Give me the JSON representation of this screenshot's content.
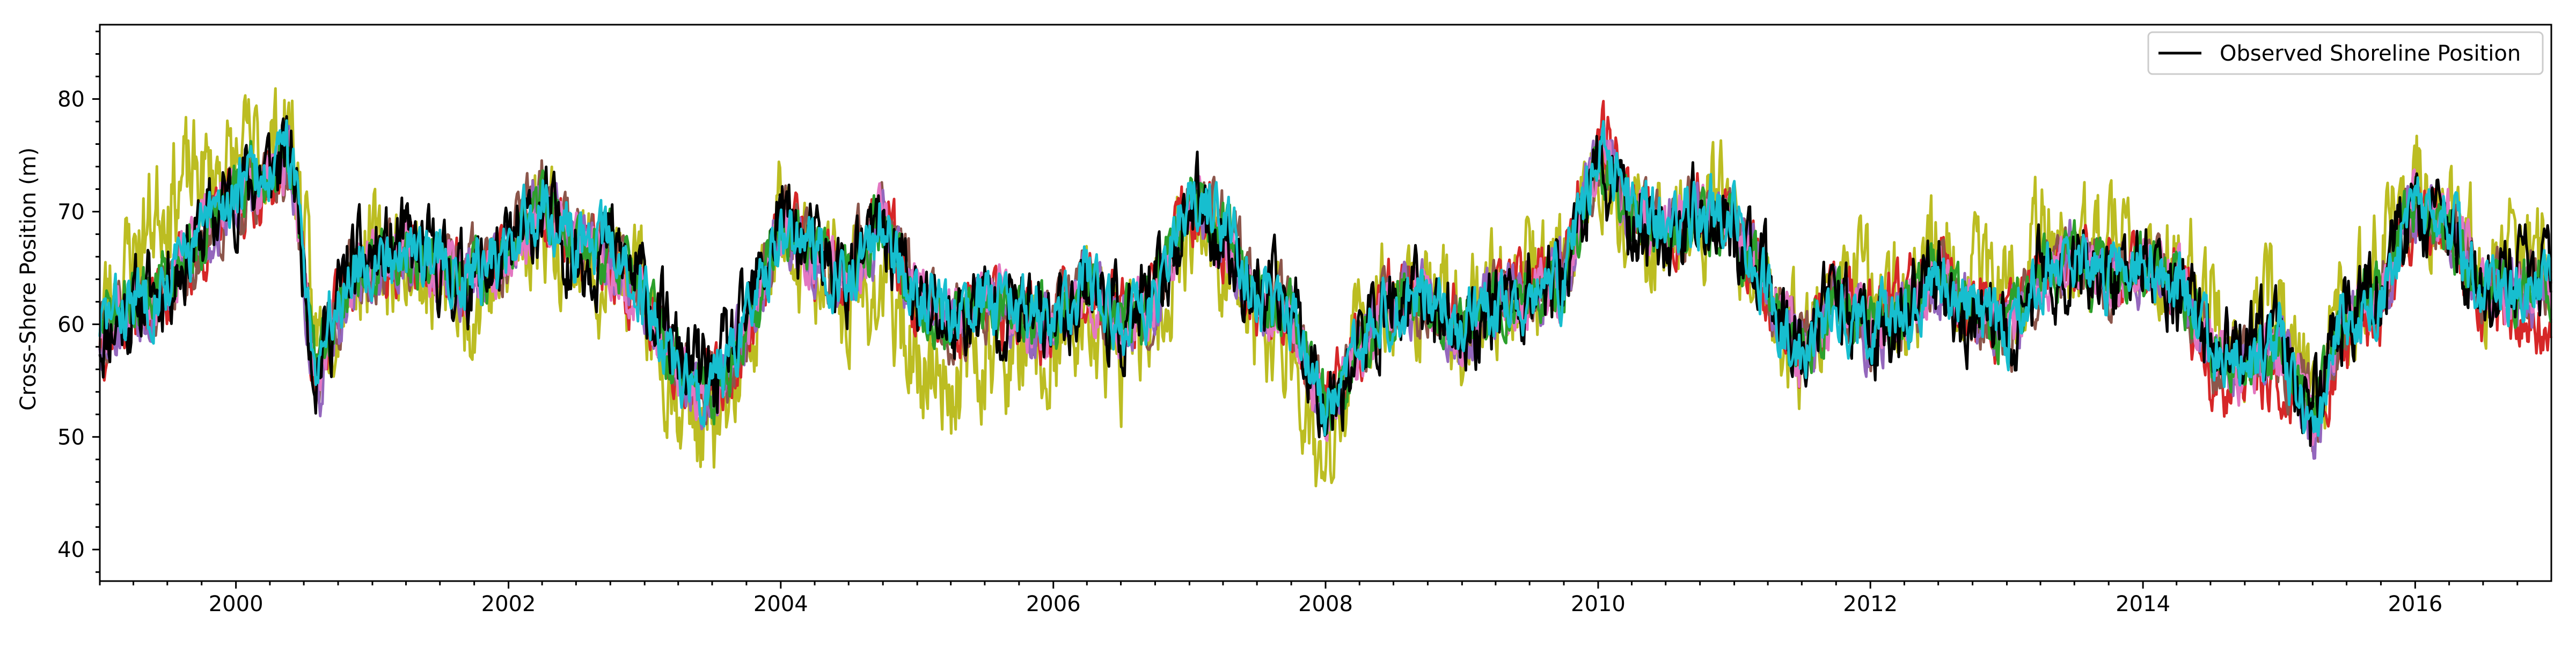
{
  "chart_data": {
    "type": "line",
    "title": "",
    "xlabel": "",
    "ylabel": "Cross-Shore Position (m)",
    "x_range": [
      "1999-01-01",
      "2016-12-31"
    ],
    "ylim": [
      37.2,
      86.6
    ],
    "x_ticks": [
      "2000",
      "2002",
      "2004",
      "2006",
      "2008",
      "2010",
      "2012",
      "2014",
      "2016"
    ],
    "y_ticks": [
      40,
      50,
      60,
      70,
      80
    ],
    "grid": false,
    "legend": {
      "placement": "top-right",
      "entries": [
        "Observed Shoreline Position"
      ]
    },
    "anchor_dates": [
      "1999-01",
      "1999-07",
      "2000-01",
      "2000-06",
      "2000-08",
      "2000-11",
      "2001-04",
      "2001-09",
      "2002-01",
      "2002-04",
      "2002-07",
      "2002-10",
      "2003-01",
      "2003-04",
      "2003-07",
      "2003-10",
      "2004-01",
      "2004-04",
      "2004-07",
      "2004-10",
      "2005-01",
      "2005-04",
      "2005-07",
      "2005-10",
      "2006-01",
      "2006-04",
      "2006-07",
      "2006-10",
      "2007-01",
      "2007-04",
      "2007-07",
      "2007-10",
      "2008-01",
      "2008-04",
      "2008-07",
      "2008-10",
      "2009-01",
      "2009-04",
      "2009-07",
      "2009-10",
      "2010-01",
      "2010-04",
      "2010-07",
      "2010-10",
      "2011-01",
      "2011-04",
      "2011-07",
      "2011-10",
      "2012-01",
      "2012-04",
      "2012-07",
      "2012-10",
      "2013-01",
      "2013-04",
      "2013-07",
      "2013-10",
      "2014-01",
      "2014-04",
      "2014-07",
      "2014-10",
      "2015-01",
      "2015-04",
      "2015-07",
      "2015-10",
      "2016-01",
      "2016-04",
      "2016-07",
      "2016-10",
      "2016-12"
    ],
    "series": [
      {
        "color": "#000000",
        "values": [
          59,
          64,
          72,
          75,
          56,
          65,
          67,
          64,
          66,
          70,
          66,
          67,
          63,
          57,
          55,
          60,
          70,
          66,
          64,
          69,
          62,
          60,
          62,
          61,
          60,
          64,
          60,
          62,
          71,
          68,
          62,
          62,
          53,
          58,
          62,
          62,
          59,
          62,
          63,
          64,
          74,
          69,
          68,
          70,
          68,
          63,
          57,
          62,
          59,
          61,
          64,
          60,
          58,
          64,
          66,
          64,
          65,
          64,
          58,
          57,
          59,
          52,
          62,
          63,
          70,
          69,
          63,
          64,
          64
        ],
        "noise": 3.2,
        "seed": 11
      },
      {
        "color": "#bcbd22",
        "values": [
          61,
          72,
          74,
          77,
          58,
          66,
          66,
          62,
          65,
          70,
          66,
          65,
          62,
          54,
          50,
          56,
          69,
          65,
          62,
          63,
          57,
          55,
          58,
          57,
          56,
          61,
          57,
          60,
          70,
          66,
          59,
          59,
          45,
          60,
          63,
          62,
          60,
          63,
          64,
          65,
          75,
          70,
          68,
          70,
          70,
          62,
          58,
          64,
          62,
          62,
          66,
          63,
          62,
          69,
          67,
          66,
          65,
          66,
          62,
          58,
          62,
          53,
          62,
          66,
          73,
          70,
          64,
          66,
          66
        ],
        "noise": 4.2,
        "seed": 23
      },
      {
        "color": "#d62728",
        "values": [
          59,
          63,
          71,
          74,
          55,
          64,
          66,
          64,
          66,
          70,
          66,
          66,
          62,
          57,
          54,
          59,
          69,
          65,
          64,
          69,
          62,
          60,
          62,
          60,
          60,
          64,
          60,
          62,
          71,
          68,
          62,
          61,
          52,
          58,
          63,
          63,
          60,
          63,
          64,
          65,
          77,
          71,
          69,
          71,
          70,
          63,
          57,
          63,
          61,
          62,
          65,
          61,
          60,
          65,
          66,
          64,
          65,
          64,
          56,
          54,
          56,
          52,
          59,
          61,
          70,
          68,
          61,
          61,
          61
        ],
        "noise": 2.6,
        "seed": 37
      },
      {
        "color": "#8c564b",
        "values": [
          59,
          63,
          71,
          74,
          55,
          64,
          66,
          65,
          67,
          73,
          68,
          67,
          62,
          56,
          54,
          59,
          69,
          66,
          65,
          70,
          62,
          60,
          62,
          60,
          60,
          64,
          60,
          62,
          71,
          69,
          63,
          61,
          52,
          58,
          62,
          62,
          60,
          62,
          63,
          64,
          75,
          70,
          68,
          70,
          69,
          63,
          57,
          62,
          59,
          61,
          64,
          61,
          59,
          64,
          66,
          64,
          65,
          64,
          57,
          56,
          58,
          52,
          61,
          63,
          71,
          69,
          63,
          63,
          64
        ],
        "noise": 2.4,
        "seed": 41
      },
      {
        "color": "#9467bd",
        "values": [
          59,
          63,
          71,
          74,
          53,
          63,
          66,
          64,
          66,
          71,
          67,
          66,
          62,
          56,
          54,
          59,
          69,
          65,
          64,
          69,
          62,
          60,
          62,
          60,
          60,
          64,
          60,
          62,
          71,
          68,
          62,
          61,
          52,
          58,
          62,
          62,
          59,
          62,
          63,
          64,
          75,
          70,
          68,
          70,
          69,
          63,
          57,
          62,
          59,
          61,
          64,
          61,
          59,
          64,
          66,
          64,
          65,
          64,
          57,
          56,
          58,
          51,
          61,
          63,
          71,
          69,
          63,
          63,
          63
        ],
        "noise": 2.3,
        "seed": 53
      },
      {
        "color": "#e377c2",
        "values": [
          60,
          64,
          72,
          74,
          56,
          64,
          67,
          64,
          66,
          71,
          67,
          66,
          62,
          56,
          54,
          59,
          69,
          66,
          64,
          69,
          62,
          60,
          62,
          61,
          60,
          64,
          60,
          62,
          71,
          68,
          62,
          61,
          52,
          58,
          62,
          62,
          60,
          62,
          63,
          64,
          75,
          70,
          68,
          70,
          69,
          63,
          57,
          62,
          60,
          61,
          64,
          61,
          60,
          64,
          66,
          64,
          65,
          64,
          58,
          56,
          58,
          52,
          61,
          63,
          71,
          69,
          63,
          63,
          63
        ],
        "noise": 2.2,
        "seed": 67
      },
      {
        "color": "#2ca02c",
        "values": [
          60,
          64,
          72,
          74,
          56,
          64,
          67,
          64,
          66,
          71,
          67,
          67,
          62,
          56,
          54,
          59,
          69,
          66,
          64,
          69,
          62,
          60,
          62,
          61,
          60,
          64,
          60,
          62,
          71,
          68,
          62,
          61,
          52,
          58,
          62,
          62,
          60,
          62,
          63,
          64,
          75,
          70,
          68,
          70,
          69,
          63,
          57,
          62,
          60,
          61,
          64,
          61,
          60,
          64,
          66,
          64,
          65,
          64,
          58,
          56,
          58,
          52,
          61,
          63,
          71,
          69,
          63,
          63,
          63
        ],
        "noise": 2.2,
        "seed": 71
      },
      {
        "color": "#17becf",
        "values": [
          60,
          64,
          72,
          75,
          57,
          65,
          67,
          65,
          66,
          71,
          67,
          67,
          62,
          56,
          54,
          59,
          69,
          66,
          64,
          69,
          62,
          60,
          62,
          61,
          60,
          64,
          60,
          62,
          72,
          69,
          62,
          61,
          51,
          58,
          62,
          63,
          60,
          62,
          63,
          64,
          76,
          71,
          68,
          70,
          70,
          63,
          57,
          62,
          60,
          61,
          64,
          61,
          60,
          64,
          66,
          64,
          65,
          64,
          58,
          56,
          59,
          50,
          61,
          63,
          71,
          69,
          63,
          63,
          64
        ],
        "noise": 2.4,
        "seed": 83
      }
    ]
  }
}
